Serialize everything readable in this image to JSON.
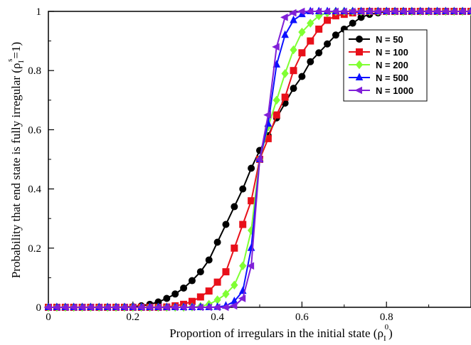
{
  "chart_data": {
    "type": "line",
    "title": "",
    "xlabel": {
      "main": "Proportion of irregulars in the initial state (ρ",
      "sub": "I",
      "sup": "0",
      "close": ")"
    },
    "ylabel": {
      "main": "Probability that end state is fully irregular (ρ",
      "sub": "I",
      "sup": "s",
      "tail": "=1)"
    },
    "xlim": [
      0,
      1
    ],
    "ylim": [
      0,
      1
    ],
    "x_ticks": [
      0,
      0.2,
      0.4,
      0.6,
      0.8
    ],
    "x_tick_labels": [
      "0",
      "0.2",
      "0.4",
      "0.6",
      "0.8"
    ],
    "y_ticks": [
      0,
      0.2,
      0.4,
      0.6,
      0.8,
      1
    ],
    "y_tick_labels": [
      "0",
      "0.2",
      "0.4",
      "0.6",
      "0.8",
      "1"
    ],
    "grid": false,
    "legend_position": "top-right",
    "x": [
      0.0,
      0.02,
      0.04,
      0.06,
      0.08,
      0.1,
      0.12,
      0.14,
      0.16,
      0.18,
      0.2,
      0.22,
      0.24,
      0.26,
      0.28,
      0.3,
      0.32,
      0.34,
      0.36,
      0.38,
      0.4,
      0.42,
      0.44,
      0.46,
      0.48,
      0.5,
      0.52,
      0.54,
      0.56,
      0.58,
      0.6,
      0.62,
      0.64,
      0.66,
      0.68,
      0.7,
      0.72,
      0.74,
      0.76,
      0.78,
      0.8,
      0.82,
      0.84,
      0.86,
      0.88,
      0.9,
      0.92,
      0.94,
      0.96,
      0.98,
      1.0
    ],
    "series": [
      {
        "name": "N = 50",
        "color": "#000000",
        "marker": "circle",
        "values": [
          0,
          0,
          0,
          0,
          0,
          0,
          0,
          0,
          0,
          0.001,
          0.002,
          0.005,
          0.01,
          0.018,
          0.03,
          0.045,
          0.065,
          0.09,
          0.12,
          0.16,
          0.22,
          0.28,
          0.34,
          0.4,
          0.47,
          0.53,
          0.58,
          0.64,
          0.69,
          0.74,
          0.78,
          0.83,
          0.86,
          0.89,
          0.92,
          0.94,
          0.96,
          0.98,
          0.99,
          0.995,
          1,
          1,
          1,
          1,
          1,
          1,
          1,
          1,
          1,
          1,
          1
        ]
      },
      {
        "name": "N = 100",
        "color": "#e8101a",
        "marker": "square",
        "values": [
          0,
          0,
          0,
          0,
          0,
          0,
          0,
          0,
          0,
          0,
          0,
          0,
          0,
          0,
          0.001,
          0.005,
          0.01,
          0.02,
          0.035,
          0.055,
          0.085,
          0.12,
          0.2,
          0.28,
          0.36,
          0.5,
          0.57,
          0.65,
          0.71,
          0.8,
          0.86,
          0.9,
          0.94,
          0.97,
          0.985,
          0.99,
          0.995,
          1,
          1,
          1,
          1,
          1,
          1,
          1,
          1,
          1,
          1,
          1,
          1,
          1,
          1
        ]
      },
      {
        "name": "N = 200",
        "color": "#80ff33",
        "marker": "diamond",
        "values": [
          0,
          0,
          0,
          0,
          0,
          0,
          0,
          0,
          0,
          0,
          0,
          0,
          0,
          0,
          0,
          0,
          0,
          0.001,
          0.003,
          0.01,
          0.025,
          0.045,
          0.075,
          0.14,
          0.26,
          0.5,
          0.61,
          0.7,
          0.79,
          0.87,
          0.93,
          0.96,
          0.985,
          0.995,
          1,
          1,
          1,
          1,
          1,
          1,
          1,
          1,
          1,
          1,
          1,
          1,
          1,
          1,
          1,
          1,
          1
        ]
      },
      {
        "name": "N = 500",
        "color": "#0d10ff",
        "marker": "triangle",
        "values": [
          0,
          0,
          0,
          0,
          0,
          0,
          0,
          0,
          0,
          0,
          0,
          0,
          0,
          0,
          0,
          0,
          0,
          0,
          0,
          0,
          0.001,
          0.005,
          0.02,
          0.055,
          0.2,
          0.5,
          0.62,
          0.82,
          0.92,
          0.97,
          0.99,
          1,
          1,
          1,
          1,
          1,
          1,
          1,
          1,
          1,
          1,
          1,
          1,
          1,
          1,
          1,
          1,
          1,
          1,
          1,
          1
        ]
      },
      {
        "name": "N = 1000",
        "color": "#8020d8",
        "marker": "left-triangle",
        "values": [
          0,
          0,
          0,
          0,
          0,
          0,
          0,
          0,
          0,
          0,
          0,
          0,
          0,
          0,
          0,
          0,
          0,
          0,
          0,
          0,
          0,
          0,
          0.005,
          0.03,
          0.14,
          0.5,
          0.65,
          0.88,
          0.98,
          0.995,
          1,
          1,
          1,
          1,
          1,
          1,
          1,
          1,
          1,
          1,
          1,
          1,
          1,
          1,
          1,
          1,
          1,
          1,
          1,
          1,
          1
        ]
      }
    ]
  }
}
